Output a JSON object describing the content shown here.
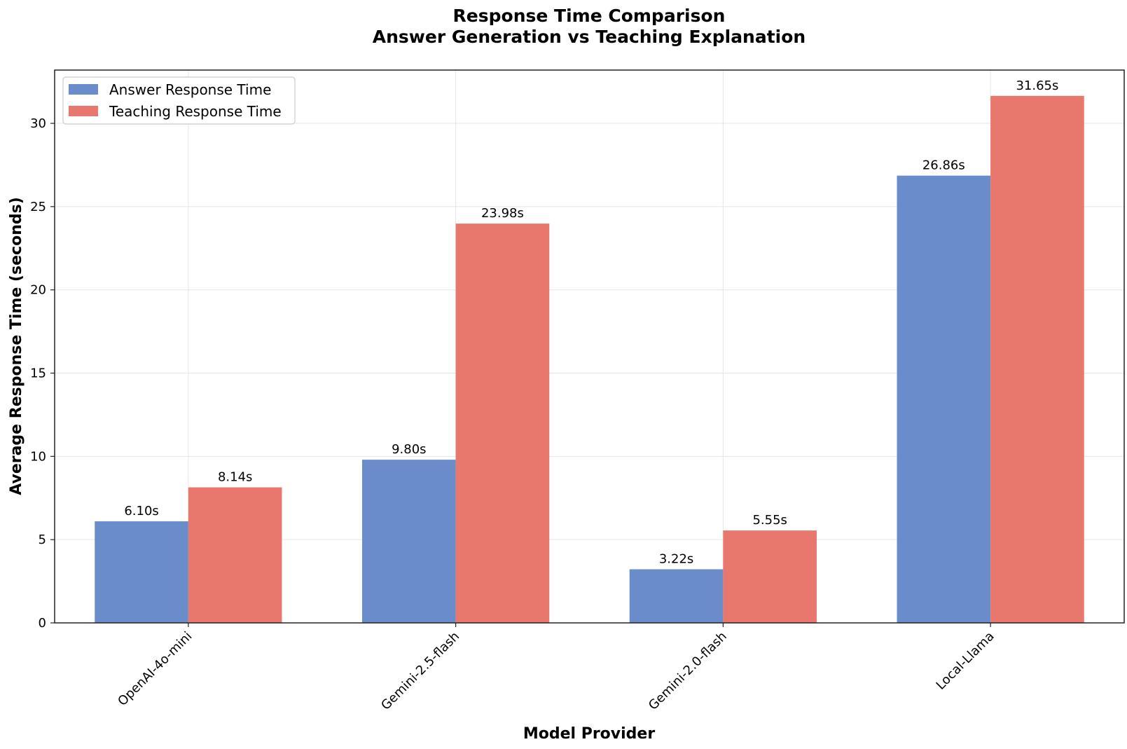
{
  "chart_data": {
    "type": "bar",
    "title": "Response Time Comparison",
    "subtitle": "Answer Generation vs Teaching Explanation",
    "xlabel": "Model Provider",
    "ylabel": "Average Response Time (seconds)",
    "categories": [
      "OpenAI-4o-mini",
      "Gemini-2.5-flash",
      "Gemini-2.0-flash",
      "Local-Llama"
    ],
    "series": [
      {
        "name": "Answer Response Time",
        "values": [
          6.1,
          9.8,
          3.22,
          26.86
        ],
        "labels": [
          "6.10s",
          "9.80s",
          "3.22s",
          "26.86s"
        ],
        "color": "#6a8cca"
      },
      {
        "name": "Teaching Response Time",
        "values": [
          8.14,
          23.98,
          5.55,
          31.65
        ],
        "labels": [
          "8.14s",
          "23.98s",
          "5.55s",
          "31.65s"
        ],
        "color": "#e8786e"
      }
    ],
    "ylim": [
      0,
      33.2
    ],
    "yticks": [
      0,
      5,
      10,
      15,
      20,
      25,
      30
    ],
    "ytick_labels": [
      "0",
      "5",
      "10",
      "15",
      "20",
      "25",
      "30"
    ],
    "grid": true,
    "legend_position": "top-left"
  }
}
